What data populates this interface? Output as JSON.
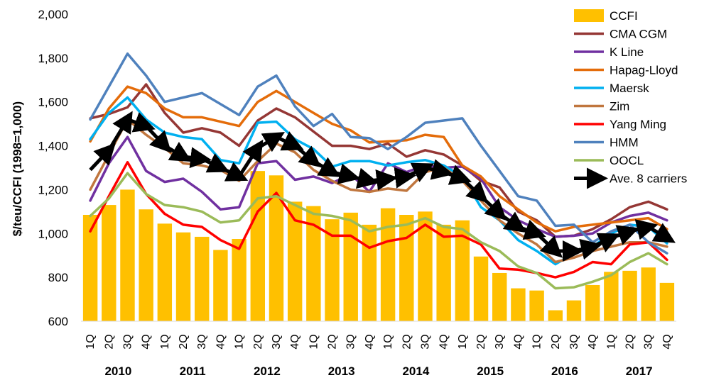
{
  "chart_data": {
    "type": "bar+line",
    "ylabel": "$/teu/CCFI (1998=1,000)",
    "ylim": [
      600,
      2000
    ],
    "yticks": [
      600,
      800,
      1000,
      1200,
      1400,
      1600,
      1800,
      2000
    ],
    "ytick_labels": [
      "600",
      "800",
      "1,000",
      "1,200",
      "1,400",
      "1,600",
      "1,800",
      "2,000"
    ],
    "categories": [
      "1Q",
      "2Q",
      "3Q",
      "4Q",
      "1Q",
      "2Q",
      "3Q",
      "4Q",
      "1Q",
      "2Q",
      "3Q",
      "4Q",
      "1Q",
      "2Q",
      "3Q",
      "4Q",
      "1Q",
      "2Q",
      "3Q",
      "4Q",
      "1Q",
      "2Q",
      "3Q",
      "4Q",
      "1Q",
      "2Q",
      "3Q",
      "4Q",
      "1Q",
      "2Q",
      "3Q",
      "4Q"
    ],
    "years": [
      "2010",
      "2011",
      "2012",
      "2013",
      "2014",
      "2015",
      "2016",
      "2017"
    ],
    "legend_position": "top-right",
    "grid": false,
    "bar_series": {
      "name": "CCFI",
      "color": "#FFC000",
      "values": [
        1085,
        1130,
        1200,
        1110,
        1045,
        1005,
        985,
        925,
        975,
        1285,
        1265,
        1145,
        1125,
        1065,
        1095,
        1040,
        1115,
        1085,
        1100,
        1040,
        1060,
        895,
        820,
        750,
        740,
        650,
        695,
        765,
        825,
        830,
        845,
        775
      ]
    },
    "series": [
      {
        "name": "CMA CGM",
        "color": "#953735",
        "values": [
          1525,
          1545,
          1575,
          1680,
          1550,
          1460,
          1480,
          1460,
          1400,
          1515,
          1570,
          1530,
          1465,
          1400,
          1400,
          1385,
          1410,
          1350,
          1380,
          1360,
          1310,
          1240,
          1210,
          1100,
          1060,
          985,
          990,
          1020,
          1065,
          1120,
          1145,
          1110
        ]
      },
      {
        "name": "K Line",
        "color": "#7030A0",
        "values": [
          1150,
          1320,
          1440,
          1285,
          1235,
          1250,
          1190,
          1110,
          1120,
          1320,
          1330,
          1245,
          1260,
          1230,
          1270,
          1190,
          1320,
          1280,
          1310,
          1300,
          1305,
          1250,
          1120,
          1060,
          1020,
          985,
          990,
          1000,
          1050,
          1080,
          1095,
          1060
        ]
      },
      {
        "name": "Hapag-Lloyd",
        "color": "#E46C0A",
        "values": [
          1420,
          1570,
          1670,
          1640,
          1570,
          1530,
          1530,
          1510,
          1490,
          1600,
          1650,
          1600,
          1550,
          1500,
          1470,
          1415,
          1420,
          1425,
          1450,
          1440,
          1310,
          1260,
          1170,
          1110,
          1050,
          1010,
          1030,
          1040,
          1050,
          1060,
          1070,
          1020
        ]
      },
      {
        "name": "Maersk",
        "color": "#00B0F0",
        "values": [
          1430,
          1550,
          1620,
          1520,
          1460,
          1440,
          1430,
          1335,
          1320,
          1505,
          1510,
          1430,
          1385,
          1305,
          1330,
          1330,
          1310,
          1325,
          1335,
          1310,
          1260,
          1120,
          1060,
          970,
          920,
          860,
          910,
          940,
          1000,
          1040,
          1030,
          955
        ]
      },
      {
        "name": "Zim",
        "color": "#C0763E",
        "values": [
          1200,
          1360,
          1520,
          1450,
          1390,
          1320,
          1310,
          1290,
          1240,
          1330,
          1410,
          1370,
          1290,
          1240,
          1200,
          1190,
          1205,
          1195,
          1280,
          1300,
          1240,
          1150,
          1060,
          1000,
          950,
          870,
          890,
          920,
          940,
          960,
          960,
          940
        ]
      },
      {
        "name": "Yang Ming",
        "color": "#FF0000",
        "values": [
          1010,
          1170,
          1325,
          1180,
          1090,
          1040,
          1030,
          970,
          930,
          1100,
          1185,
          1060,
          1040,
          990,
          990,
          935,
          965,
          980,
          1040,
          985,
          990,
          950,
          840,
          835,
          820,
          800,
          825,
          870,
          860,
          950,
          960,
          880
        ]
      },
      {
        "name": "HMM",
        "color": "#4F81BD",
        "values": [
          1520,
          1670,
          1820,
          1720,
          1600,
          1620,
          1640,
          1590,
          1540,
          1670,
          1720,
          1580,
          1490,
          1545,
          1440,
          1435,
          1385,
          1440,
          1505,
          1515,
          1525,
          1400,
          1285,
          1170,
          1150,
          1035,
          1040,
          960,
          1010,
          1040,
          960,
          910
        ]
      },
      {
        "name": "OOCL",
        "color": "#9BBB59",
        "values": [
          1080,
          1160,
          1275,
          1180,
          1130,
          1120,
          1100,
          1050,
          1060,
          1160,
          1170,
          1130,
          1090,
          1080,
          1060,
          1010,
          1030,
          1040,
          1070,
          1030,
          1020,
          960,
          920,
          850,
          820,
          750,
          755,
          780,
          810,
          870,
          910,
          860
        ]
      }
    ],
    "avg_series": {
      "name": "Ave. 8 carriers",
      "color": "#000000",
      "values": [
        1290,
        1380,
        1520,
        1490,
        1400,
        1350,
        1340,
        1300,
        1260,
        1390,
        1440,
        1400,
        1330,
        1280,
        1260,
        1240,
        1250,
        1260,
        1300,
        1280,
        1250,
        1170,
        1090,
        1030,
        1000,
        920,
        920,
        940,
        980,
        1010,
        1030,
        980
      ]
    }
  }
}
